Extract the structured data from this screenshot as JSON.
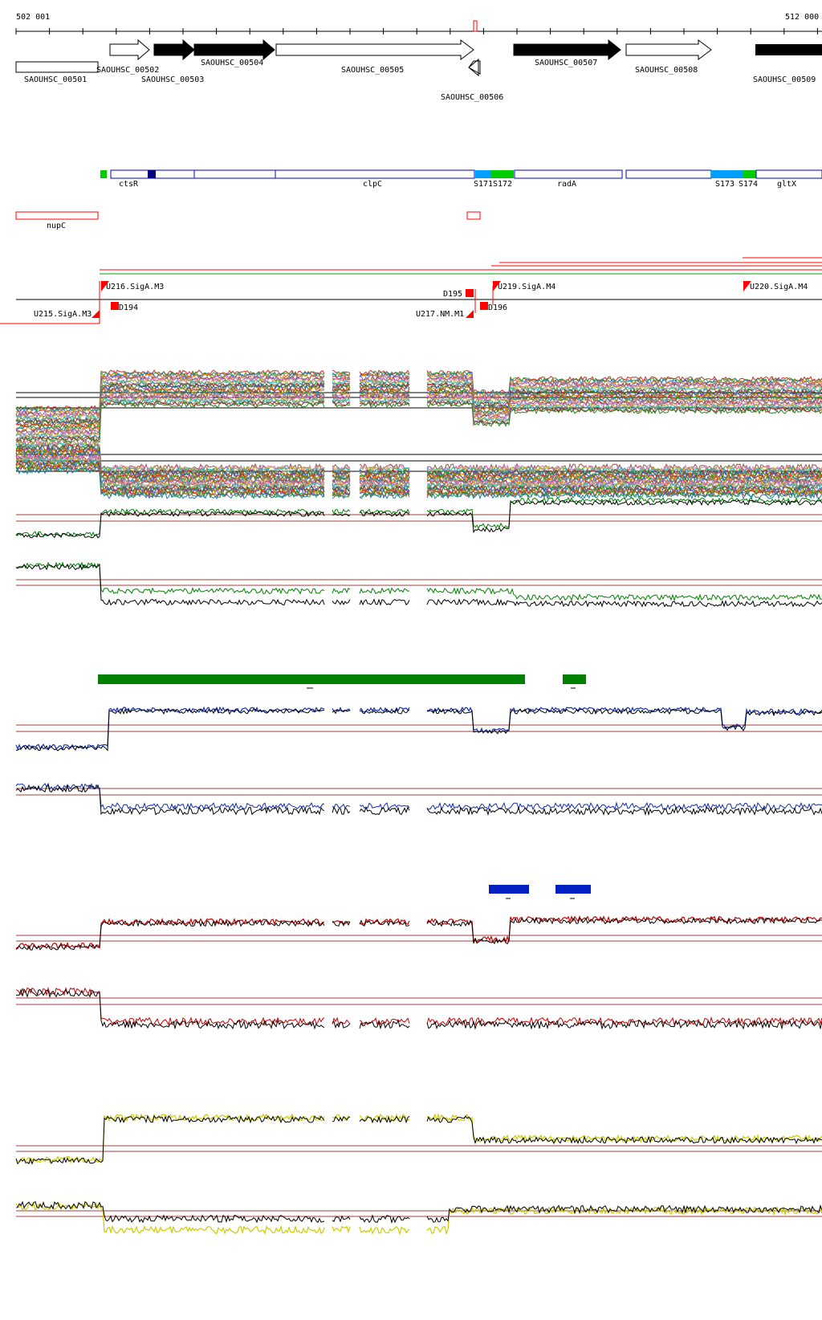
{
  "coords": {
    "start": "502 001",
    "end": "512 000"
  },
  "genes": [
    "SAOUHSC_00501",
    "SAOUHSC_00502",
    "SAOUHSC_00503",
    "SAOUHSC_00504",
    "SAOUHSC_00505",
    "SAOUHSC_00506",
    "SAOUHSC_00507",
    "SAOUHSC_00508",
    "SAOUHSC_00509"
  ],
  "segments": [
    "ctsR",
    "clpC",
    "S171",
    "S172",
    "radA",
    "S173",
    "S174",
    "gltX"
  ],
  "regions": [
    "nupC"
  ],
  "breakpoints": [
    "U216.SigA.M3",
    "U215.SigA.M3",
    "D194",
    "D195",
    "U217.NM.M1",
    "D196",
    "U219.SigA.M4",
    "U220.SigA.M4"
  ],
  "colors": {
    "blue_segment": "#0000cc",
    "green_box": "#00cc00",
    "lightblue_box": "#00a0ff",
    "red": "#ff0000",
    "green_track": "#008000",
    "blue_track": "#1030b0",
    "red_track": "#cc0000",
    "yellow_track": "#cccc00"
  }
}
